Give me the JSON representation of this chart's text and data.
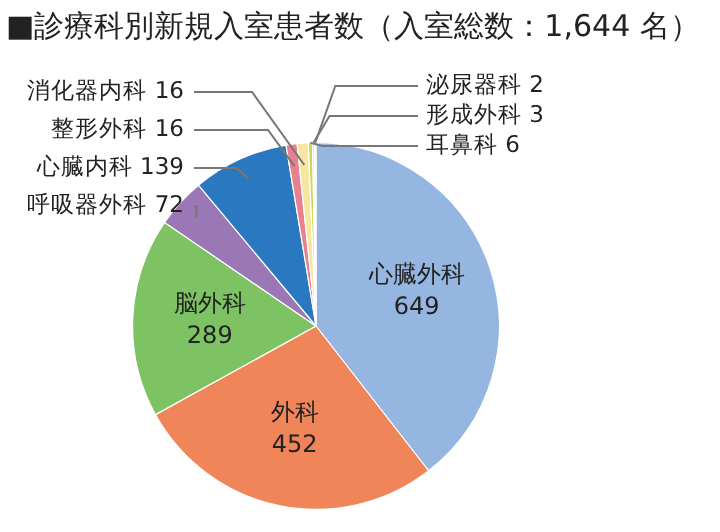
{
  "chart_data": {
    "type": "pie",
    "title": "■診療科別新規入室患者数（入室総数：1,644 名）",
    "categories": [
      "心臓外科",
      "外科",
      "脳外科",
      "呼吸器外科",
      "心臓内科",
      "整形外科",
      "消化器内科",
      "耳鼻科",
      "形成外科",
      "泌尿器科"
    ],
    "values": [
      649,
      452,
      289,
      72,
      139,
      16,
      16,
      6,
      3,
      2
    ],
    "colors": [
      "#95b6e0",
      "#f0855a",
      "#7dc263",
      "#9b77b5",
      "#2a78c0",
      "#e8808e",
      "#f5e6a0",
      "#c8d85a",
      "#f2e58a",
      "#d9d9d9"
    ],
    "data_labels": true,
    "legend": false
  }
}
